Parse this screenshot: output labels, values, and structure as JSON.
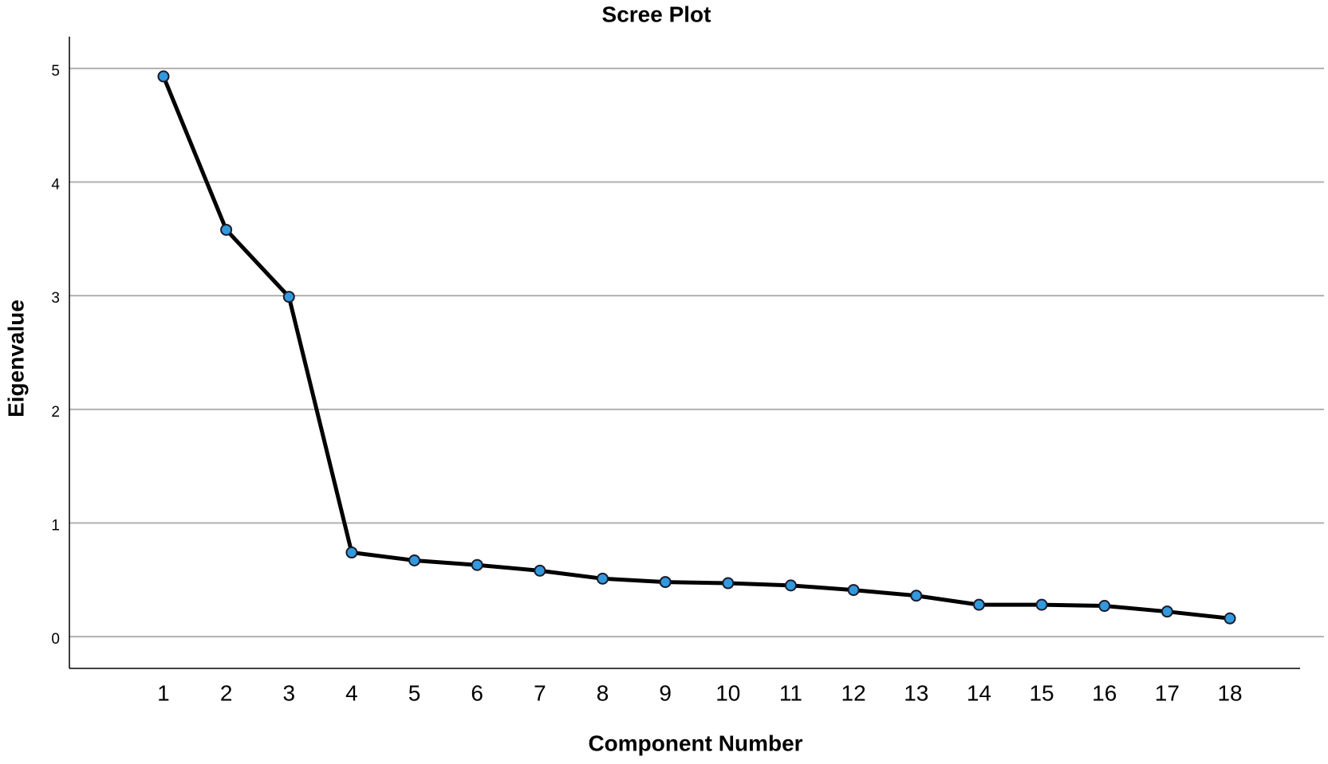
{
  "chart_data": {
    "type": "line",
    "title": "Scree Plot",
    "x_label": "Component Number",
    "y_label": "Eigenvalue",
    "x": [
      1,
      2,
      3,
      4,
      5,
      6,
      7,
      8,
      9,
      10,
      11,
      12,
      13,
      14,
      15,
      16,
      17,
      18
    ],
    "series": [
      {
        "color": "#000000",
        "marker_color": "#3399dd",
        "values": [
          4.93,
          3.58,
          2.99,
          0.74,
          0.67,
          0.63,
          0.58,
          0.51,
          0.48,
          0.47,
          0.45,
          0.41,
          0.36,
          0.28,
          0.28,
          0.27,
          0.22,
          0.16
        ]
      }
    ],
    "xlim": [
      -0.5,
      19.5
    ],
    "xticks": [
      1,
      2,
      3,
      4,
      5,
      6,
      7,
      8,
      9,
      10,
      11,
      12,
      13,
      14,
      15,
      16,
      17,
      18
    ],
    "ylim": [
      -0.28,
      5.28
    ],
    "yticks": [
      0,
      1,
      2,
      3,
      4,
      5
    ],
    "grid": true
  }
}
